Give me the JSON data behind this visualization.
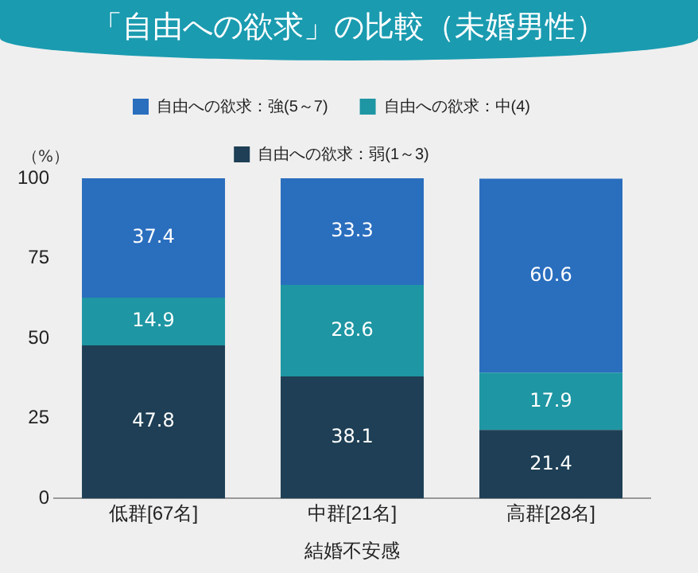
{
  "chart_data": {
    "type": "bar",
    "title": "「自由への欲求」の比較（未婚男性）",
    "xlabel": "結婚不安感",
    "ylabel": "（%）",
    "categories": [
      "低群[67名]",
      "中群[21名]",
      "高群[28名]"
    ],
    "stacked": true,
    "series": [
      {
        "name": "自由への欲求：弱(1～3)",
        "color": "#1e3f55",
        "values": [
          47.8,
          38.1,
          21.4
        ]
      },
      {
        "name": "自由への欲求：中(4)",
        "color": "#1e96a3",
        "values": [
          14.9,
          28.6,
          17.9
        ]
      },
      {
        "name": "自由への欲求：強(5～7)",
        "color": "#2a6ebe",
        "values": [
          37.4,
          33.3,
          60.6
        ]
      }
    ],
    "ylim": [
      0,
      100
    ],
    "yticks": [
      0,
      25,
      50,
      75,
      100
    ],
    "grid": false,
    "legend": "top",
    "data_labels": true
  }
}
